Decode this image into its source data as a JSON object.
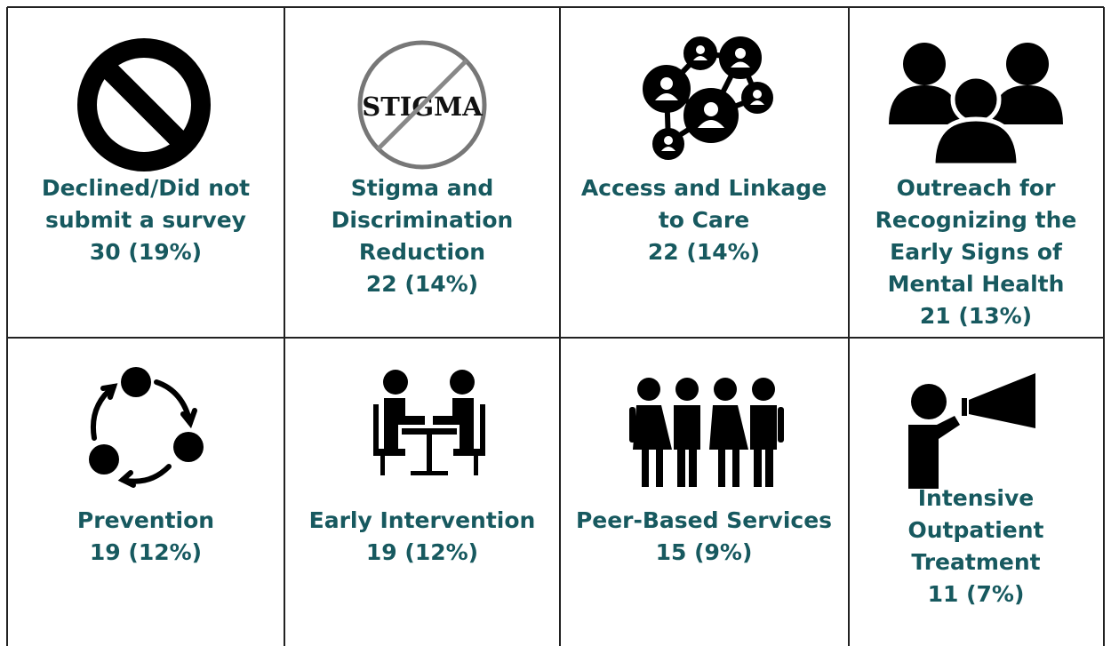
{
  "cells": [
    {
      "label_lines": [
        "Declined/Did not",
        "submit a survey"
      ],
      "count": "30 (19%)"
    },
    {
      "label_lines": [
        "Stigma and",
        "Discrimination",
        "Reduction"
      ],
      "count": "22 (14%)",
      "icon_text": "STIGMA"
    },
    {
      "label_lines": [
        "Access and Linkage",
        "to Care"
      ],
      "count": "22 (14%)"
    },
    {
      "label_lines": [
        "Outreach for",
        "Recognizing the",
        "Early Signs of",
        "Mental Health"
      ],
      "count": "21 (13%)"
    },
    {
      "label_lines": [
        "Prevention"
      ],
      "count": "19 (12%)"
    },
    {
      "label_lines": [
        "Early Intervention"
      ],
      "count": "19 (12%)"
    },
    {
      "label_lines": [
        "Peer-Based Services"
      ],
      "count": "15 (9%)"
    },
    {
      "label_lines": [
        "Intensive",
        "Outpatient",
        "Treatment"
      ],
      "count": "11 (7%)"
    }
  ]
}
